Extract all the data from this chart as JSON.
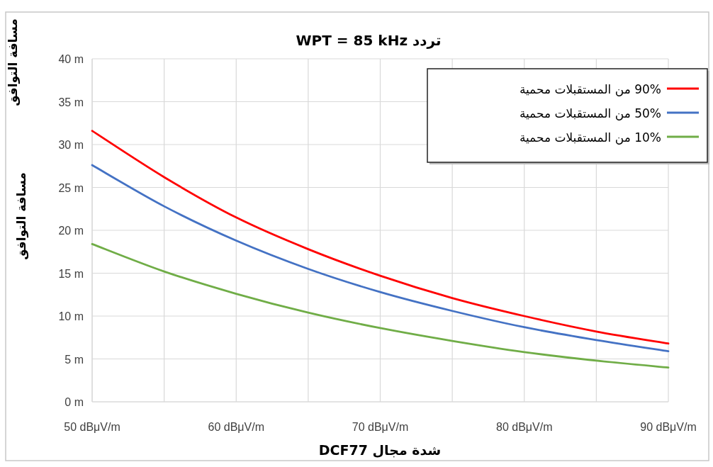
{
  "chart_data": {
    "type": "line",
    "title": "تردد WPT = 85 kHz",
    "xlabel": "شدة مجال DCF77",
    "ylabel": "مسافة التوافق",
    "annotations": [
      "مسافة التوافق"
    ],
    "x": [
      50,
      55,
      60,
      65,
      70,
      75,
      80,
      85,
      90
    ],
    "series": [
      {
        "name": "90% من المستقبلات محمية",
        "color": "#ff0000",
        "values": [
          31.6,
          26.2,
          21.5,
          17.8,
          14.7,
          12.1,
          10.0,
          8.2,
          6.8
        ]
      },
      {
        "name": "50% من المستقبلات محمية",
        "color": "#4472c4",
        "values": [
          27.6,
          22.8,
          18.8,
          15.5,
          12.8,
          10.6,
          8.7,
          7.2,
          5.9
        ]
      },
      {
        "name": "10% من المستقبلات محمية",
        "color": "#70ad47",
        "values": [
          18.4,
          15.2,
          12.6,
          10.4,
          8.6,
          7.1,
          5.8,
          4.8,
          4.0
        ]
      }
    ],
    "xlim": [
      50,
      90
    ],
    "ylim": [
      0,
      40
    ],
    "xticks": [
      {
        "value": 50,
        "label": "50 dBμV/m"
      },
      {
        "value": 55,
        "label": null
      },
      {
        "value": 60,
        "label": "60 dBμV/m"
      },
      {
        "value": 65,
        "label": null
      },
      {
        "value": 70,
        "label": "70 dBμV/m"
      },
      {
        "value": 75,
        "label": null
      },
      {
        "value": 80,
        "label": "80 dBμV/m"
      },
      {
        "value": 85,
        "label": null
      },
      {
        "value": 90,
        "label": "90 dBμV/m"
      }
    ],
    "yticks": [
      {
        "value": 0,
        "label": "0 m"
      },
      {
        "value": 5,
        "label": "5 m"
      },
      {
        "value": 10,
        "label": "10 m"
      },
      {
        "value": 15,
        "label": "15 m"
      },
      {
        "value": 20,
        "label": "20 m"
      },
      {
        "value": 25,
        "label": "25 m"
      },
      {
        "value": 30,
        "label": "30 m"
      },
      {
        "value": 35,
        "label": "35 m"
      },
      {
        "value": 40,
        "label": "40 m"
      }
    ],
    "grid": true,
    "legend": "top right",
    "marker": "none",
    "line_style": "solid"
  }
}
